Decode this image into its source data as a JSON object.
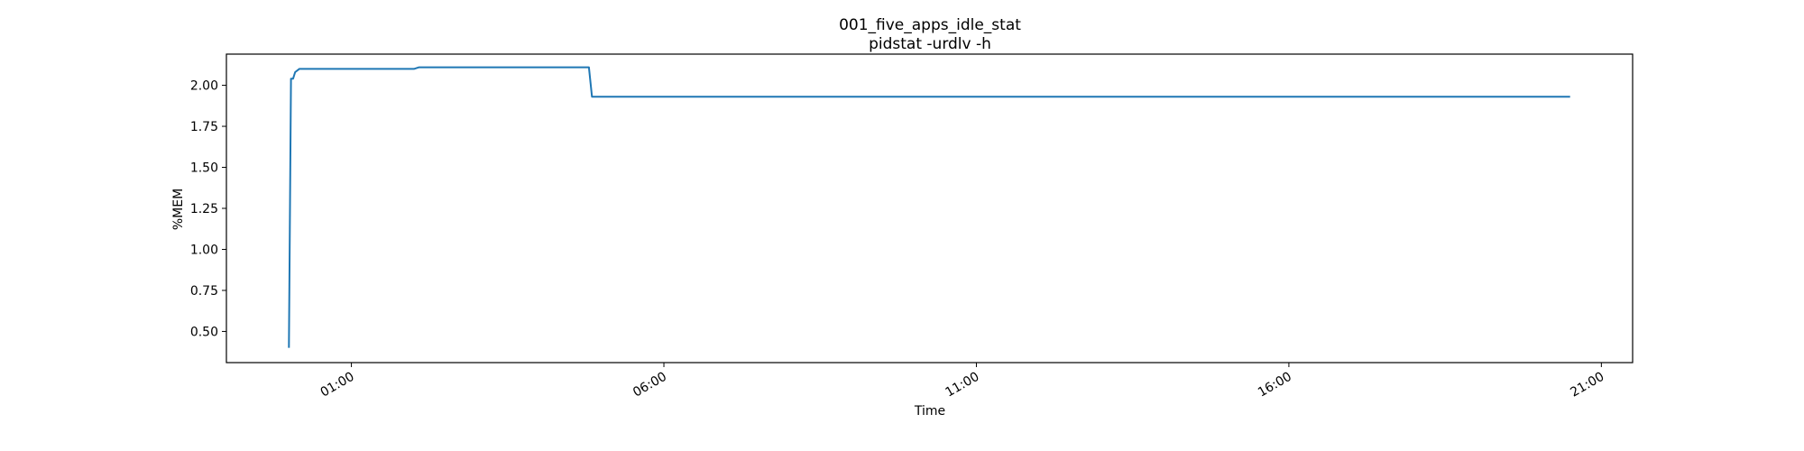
{
  "chart_data": {
    "type": "line",
    "title": "001_five_apps_idle_stat",
    "subtitle": "pidstat -urdlv -h",
    "xlabel": "Time",
    "ylabel": "%MEM",
    "x_is_time": true,
    "x_tick_labels": [
      "01:00",
      "06:00",
      "11:00",
      "16:00",
      "21:00"
    ],
    "x_tick_values": [
      "01:00",
      "06:00",
      "11:00",
      "16:00",
      "21:00"
    ],
    "xlim": [
      "23:00",
      "21:30"
    ],
    "yticks": [
      "0.50",
      "0.75",
      "1.00",
      "1.25",
      "1.50",
      "1.75",
      "2.00"
    ],
    "ylim": [
      0.31,
      2.19
    ],
    "grid": false,
    "series": [
      {
        "color": "#1f77b4",
        "x": [
          "00:00",
          "00:02",
          "00:04",
          "00:06",
          "00:10",
          "00:15",
          "02:00",
          "02:05",
          "04:45",
          "04:48",
          "04:51",
          "20:30"
        ],
        "y": [
          0.4,
          2.04,
          2.04,
          2.08,
          2.1,
          2.1,
          2.1,
          2.11,
          2.11,
          2.11,
          1.93,
          1.93
        ]
      }
    ]
  }
}
